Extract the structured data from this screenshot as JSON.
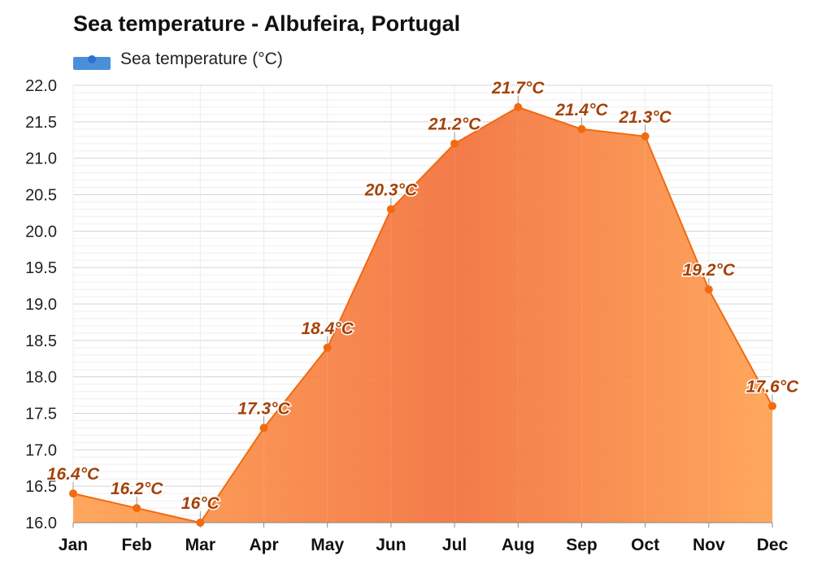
{
  "chart_data": {
    "type": "area",
    "title": "Sea temperature - Albufeira, Portugal",
    "categories": [
      "Jan",
      "Feb",
      "Mar",
      "Apr",
      "May",
      "Jun",
      "Jul",
      "Aug",
      "Sep",
      "Oct",
      "Nov",
      "Dec"
    ],
    "series": [
      {
        "name": "Sea temperature (°C)",
        "values": [
          16.4,
          16.2,
          16.0,
          17.3,
          18.4,
          20.3,
          21.2,
          21.7,
          21.4,
          21.3,
          19.2,
          17.6
        ],
        "labels": [
          "16.4°C",
          "16.2°C",
          "16°C",
          "17.3°C",
          "18.4°C",
          "20.3°C",
          "21.2°C",
          "21.7°C",
          "21.4°C",
          "21.3°C",
          "19.2°C",
          "17.6°C"
        ]
      }
    ],
    "yticks": [
      "16.0",
      "16.5",
      "17.0",
      "17.5",
      "18.0",
      "18.5",
      "19.0",
      "19.5",
      "20.0",
      "20.5",
      "21.0",
      "21.5",
      "22.0"
    ],
    "ylim": [
      16.0,
      22.0
    ],
    "xlabel": "",
    "ylabel": "",
    "grid": true,
    "legend_position": "top-left"
  },
  "colors": {
    "line": "#f26a10",
    "marker": "#f26a10",
    "area_light": "#ffa050",
    "area_dark": "#f2703a",
    "label": "#a3420a",
    "legend_swatch": "#4a90d9"
  }
}
